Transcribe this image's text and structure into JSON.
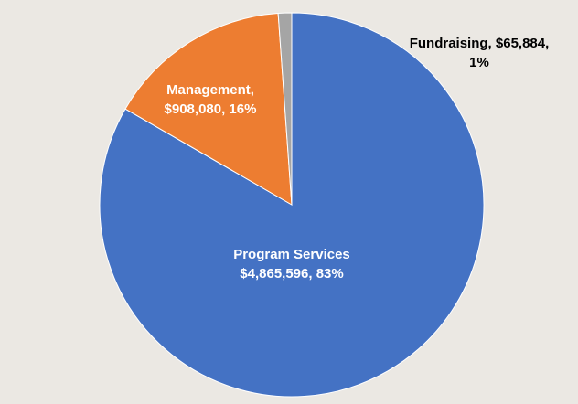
{
  "chart_data": {
    "type": "pie",
    "title": "",
    "slices": [
      {
        "name": "Program Services",
        "value": 4865596,
        "color": "#4472c4",
        "label_line1": "Program Services",
        "label_line2": "$4,865,596, 83%",
        "label_color": "#ffffff"
      },
      {
        "name": "Management",
        "value": 908080,
        "color": "#ed7d31",
        "label_line1": "Management,",
        "label_line2": "$908,080, 16%",
        "label_color": "#ffffff"
      },
      {
        "name": "Fundraising",
        "value": 65884,
        "color": "#a5a5a5",
        "label_line1": "Fundraising,  $65,884,",
        "label_line2": "1%",
        "label_color": "#000000"
      }
    ],
    "start_angle_deg": 0,
    "direction": "clockwise"
  }
}
